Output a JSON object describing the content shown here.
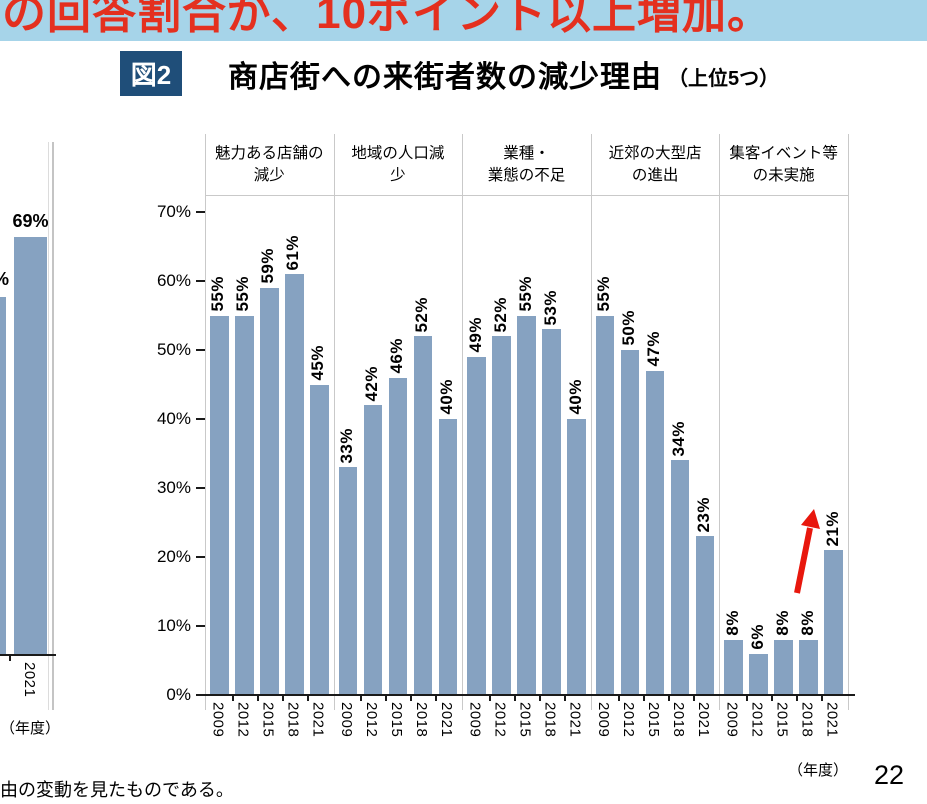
{
  "banner": {
    "text": "の回答割合が、10ポイント以上増加。",
    "bg_color": "#A6D4E9",
    "text_color": "#E4301F"
  },
  "figure_header": {
    "tag": "図2",
    "tag_bg_color": "#1F4E79",
    "title": "商店街への来街者数の減少理由",
    "title_suffix": "（上位5つ）"
  },
  "left_chart": {
    "clipped_bar_label": "%",
    "bar_label": "69%",
    "bar_value": 69,
    "year_label": "2021",
    "axis_unit_label": "（年度）",
    "bar_color": "#86A2C1"
  },
  "chart_data": {
    "type": "bar",
    "title": "商店街への来街者数の減少理由（上位5つ）",
    "ylim": [
      0,
      70
    ],
    "y_tick_labels": [
      "70%",
      "60%",
      "50%",
      "40%",
      "30%",
      "20%",
      "10%",
      "0%"
    ],
    "x_tick_labels_per_group": [
      "2009",
      "2012",
      "2015",
      "2018",
      "2021"
    ],
    "axis_unit_label": "（年度）",
    "legend": "none",
    "grid": "vertical group dividers only",
    "bar_color": "#86A2C1",
    "groups": [
      {
        "category": "魅力ある店舗の減少",
        "header_lines": [
          "魅力ある店舗の",
          "減少"
        ],
        "values": [
          55,
          55,
          59,
          61,
          45
        ]
      },
      {
        "category": "地域の人口減少",
        "header_lines": [
          "地域の人口減",
          "少"
        ],
        "values": [
          33,
          42,
          46,
          52,
          40
        ]
      },
      {
        "category": "業種・業態の不足",
        "header_lines": [
          "業種・",
          "業態の不足"
        ],
        "values": [
          49,
          52,
          55,
          53,
          40
        ]
      },
      {
        "category": "近郊の大型店の進出",
        "header_lines": [
          "近郊の大型店",
          "の進出"
        ],
        "values": [
          55,
          50,
          47,
          34,
          23
        ]
      },
      {
        "category": "集客イベント等の未実施",
        "header_lines": [
          "集客イベント等",
          "の未実施"
        ],
        "values": [
          8,
          6,
          8,
          8,
          21
        ]
      }
    ],
    "annotation_arrow": {
      "color": "#E8170D",
      "description": "red arrow pointing up from the 2018 bar (8%) to the 2021 bar label (21%) in the 集客イベント等の未実施 group"
    }
  },
  "footer": {
    "note_text": "由の変動を見たものである。",
    "page_number": "22"
  }
}
